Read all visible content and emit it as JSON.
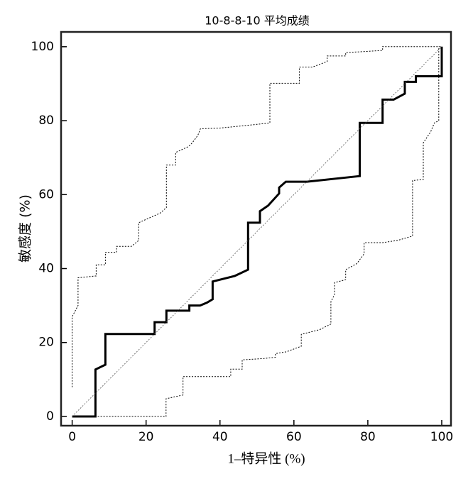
{
  "chart_data": {
    "type": "line",
    "title": "10-8-8-10 平均成绩",
    "xlabel": "1–特异性 (%)",
    "ylabel": "敏感度 (%)",
    "xlim": [
      -3,
      102.5
    ],
    "ylim": [
      -2.5,
      104
    ],
    "xticks": [
      0,
      20,
      40,
      60,
      80,
      100
    ],
    "yticks": [
      0,
      20,
      40,
      60,
      80,
      100
    ],
    "series": [
      {
        "color": "#000000",
        "width": 3,
        "dashed": false,
        "x": [
          0,
          6.3,
          6.3,
          9,
          9,
          22.3,
          22.3,
          25.5,
          25.5,
          31.7,
          31.7,
          34.6,
          36.5,
          38,
          38,
          44,
          47.6,
          47.6,
          50.8,
          50.8,
          53,
          56,
          56,
          57.8,
          63.5,
          77.8,
          77.8,
          84,
          84,
          87,
          90,
          90,
          93,
          93,
          100,
          100
        ],
        "values": [
          0,
          0,
          12.7,
          14,
          22.3,
          22.3,
          25.5,
          25.5,
          28.6,
          28.6,
          30,
          30,
          30.8,
          31.7,
          36.5,
          38,
          39.7,
          52.4,
          52.4,
          55.5,
          57,
          60.3,
          61.9,
          63.5,
          63.5,
          65,
          79.4,
          79.4,
          85.7,
          85.7,
          87.3,
          90.5,
          90.5,
          92,
          92,
          100
        ]
      },
      {
        "color": "#000000",
        "width": 1,
        "dashed": true,
        "x": [
          0,
          0,
          1.6,
          1.6,
          6.5,
          6.5,
          9,
          9,
          12,
          12,
          16,
          18,
          18,
          20,
          23.8,
          25.5,
          25.5,
          28,
          28,
          31.5,
          32.5,
          34,
          34.7,
          40,
          50,
          53.5,
          53.5,
          61.5,
          61.5,
          65,
          69,
          69,
          74,
          74,
          84,
          84,
          100
        ],
        "values": [
          7.9,
          27,
          30,
          37.5,
          38,
          41,
          41,
          44.4,
          44.4,
          46,
          46,
          47.6,
          52.4,
          53.3,
          55,
          56.5,
          68,
          68,
          71.4,
          73,
          74,
          76,
          77.8,
          78,
          79,
          79.4,
          90.1,
          90.1,
          94.5,
          94.5,
          96,
          97.5,
          97.5,
          98.4,
          99,
          100,
          100
        ]
      },
      {
        "color": "#000000",
        "width": 1,
        "dashed": true,
        "x": [
          0,
          25.4,
          25.4,
          30,
          30,
          42.9,
          42.9,
          46,
          46,
          52,
          55,
          55,
          58,
          62,
          62,
          67,
          70,
          70,
          71,
          71,
          74,
          74,
          77,
          79,
          79,
          84,
          88,
          92.1,
          92.1,
          95,
          95,
          96,
          97,
          98,
          99.2,
          99.2
        ],
        "values": [
          0,
          0,
          4.8,
          5.8,
          10.8,
          10.8,
          12.8,
          12.8,
          15.3,
          15.7,
          16,
          17,
          17.5,
          19,
          22.2,
          23.5,
          25,
          31,
          33,
          36.2,
          37,
          39.7,
          41.3,
          44,
          47,
          47,
          47.6,
          48.8,
          63.8,
          64.1,
          74,
          75.5,
          77,
          79.4,
          80,
          100
        ]
      },
      {
        "color": "#555555",
        "width": 0.8,
        "dashed": true,
        "x": [
          0,
          100
        ],
        "values": [
          0,
          100
        ]
      }
    ]
  }
}
